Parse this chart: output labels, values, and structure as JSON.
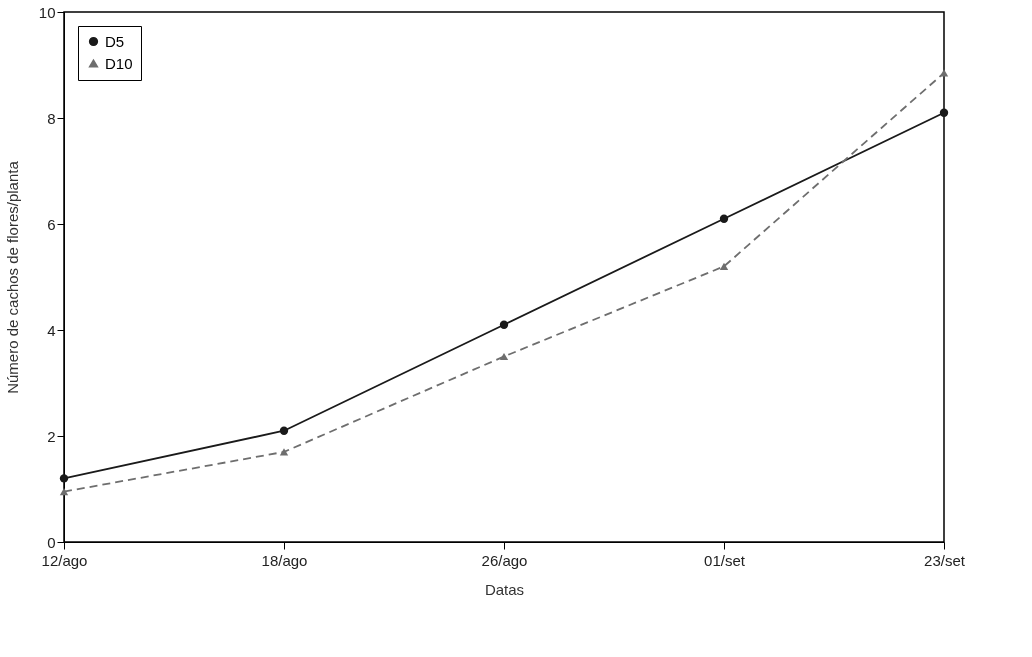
{
  "chart_data": {
    "type": "line",
    "xlabel": "Datas",
    "ylabel": "Número de cachos de flores/planta",
    "categories": [
      "12/ago",
      "18/ago",
      "26/ago",
      "01/set",
      "23/set"
    ],
    "series": [
      {
        "name": "D5",
        "color": "#1a1a1a",
        "marker": "circle",
        "line_style": "solid",
        "values": [
          1.2,
          2.1,
          4.1,
          6.1,
          8.1
        ]
      },
      {
        "name": "D10",
        "color": "#6e6e6e",
        "marker": "triangle",
        "line_style": "dashed",
        "values": [
          0.95,
          1.7,
          3.5,
          5.2,
          8.85
        ]
      }
    ],
    "ylim": [
      0,
      10
    ],
    "yticks": [
      0,
      2,
      4,
      6,
      8,
      10
    ],
    "grid": false,
    "legend": "top left"
  }
}
